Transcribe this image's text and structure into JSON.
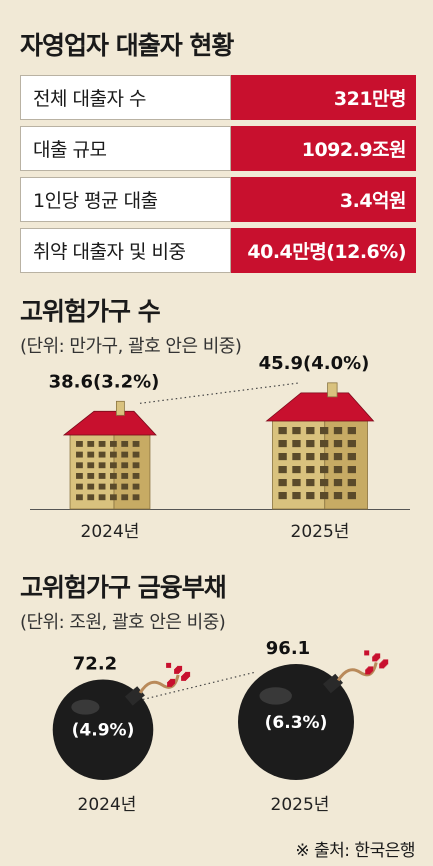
{
  "title": "자영업자 대출자 현황",
  "stats": [
    {
      "label": "전체 대출자 수",
      "value": "321만명"
    },
    {
      "label": "대출 규모",
      "value": "1092.9조원"
    },
    {
      "label": "1인당 평균 대출",
      "value": "3.4억원"
    },
    {
      "label": "취약 대출자 및 비중",
      "value": "40.4만명(12.6%)"
    }
  ],
  "section1": {
    "title": "고위험가구 수",
    "unit": "(단위: 만가구, 괄호 안은 비중)"
  },
  "section2": {
    "title": "고위험가구 금융부채",
    "unit": "(단위: 조원, 괄호 안은 비중)"
  },
  "source": "※ 출처: 한국은행",
  "colors": {
    "accent_red": "#c8102e",
    "background": "#f1e9d6",
    "house_wall": "#d9c27e",
    "bomb": "#1c1c1c"
  },
  "chart_data": [
    {
      "type": "bar",
      "categories": [
        "2024년",
        "2025년"
      ],
      "values": [
        38.6,
        45.9
      ],
      "share_percent": [
        3.2,
        4.0
      ],
      "data_labels": [
        "38.6(3.2%)",
        "45.9(4.0%)"
      ],
      "title": "고위험가구 수",
      "ylabel": "(단위: 만가구, 괄호 안은 비중)"
    },
    {
      "type": "bar",
      "categories": [
        "2024년",
        "2025년"
      ],
      "values": [
        72.2,
        96.1
      ],
      "share_percent": [
        4.9,
        6.3
      ],
      "data_labels": [
        "72.2",
        "96.1"
      ],
      "share_labels": [
        "(4.9%)",
        "(6.3%)"
      ],
      "title": "고위험가구 금융부채",
      "ylabel": "(단위: 조원, 괄호 안은 비중)"
    }
  ]
}
